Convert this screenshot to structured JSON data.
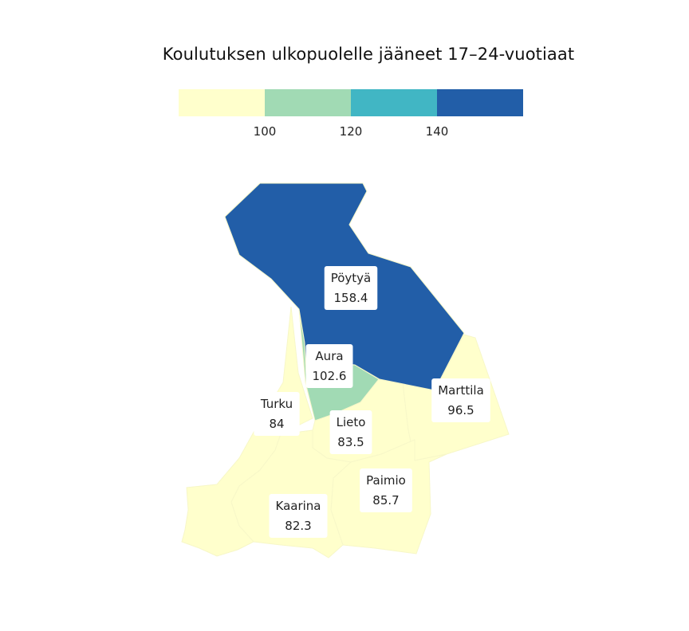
{
  "title": "Koulutuksen ulkopuolelle jääneet 17–24-vuotiaat",
  "legend": {
    "colors": [
      "#ffffcc",
      "#a1dab4",
      "#41b6c4",
      "#225ea8"
    ],
    "thresholds": [
      "100",
      "120",
      "140"
    ]
  },
  "regions": [
    {
      "id": "poytya",
      "name": "Pöytyä",
      "value": "158.4",
      "color": "#225ea8"
    },
    {
      "id": "aura",
      "name": "Aura",
      "value": "102.6",
      "color": "#a1dab4"
    },
    {
      "id": "turku",
      "name": "Turku",
      "value": "84",
      "color": "#ffffcc"
    },
    {
      "id": "lieto",
      "name": "Lieto",
      "value": "83.5",
      "color": "#ffffcc"
    },
    {
      "id": "marttila",
      "name": "Marttila",
      "value": "96.5",
      "color": "#ffffcc"
    },
    {
      "id": "paimio",
      "name": "Paimio",
      "value": "85.7",
      "color": "#ffffcc"
    },
    {
      "id": "kaarina",
      "name": "Kaarina",
      "value": "82.3",
      "color": "#ffffcc"
    }
  ]
}
